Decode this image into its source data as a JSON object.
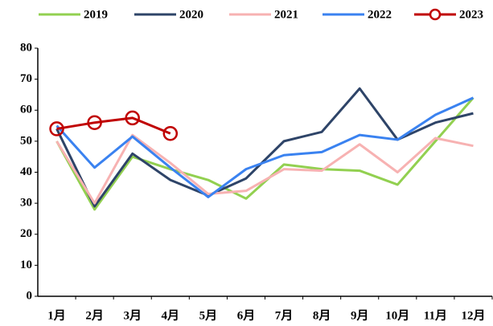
{
  "chart_data": {
    "type": "line",
    "categories": [
      "1月",
      "2月",
      "3月",
      "4月",
      "5月",
      "6月",
      "7月",
      "8月",
      "9月",
      "10月",
      "11月",
      "12月"
    ],
    "series": [
      {
        "name": "2019",
        "color": "#92d050",
        "values": [
          50,
          28,
          45,
          41,
          37.5,
          31.5,
          42.5,
          41,
          40.5,
          36,
          50,
          64
        ]
      },
      {
        "name": "2020",
        "color": "#2e4468",
        "values": [
          54,
          29,
          46,
          37.5,
          32.5,
          38,
          50,
          53,
          67,
          50.5,
          56,
          59
        ]
      },
      {
        "name": "2021",
        "color": "#f7b2b2",
        "values": [
          50,
          30,
          52,
          43,
          33,
          34,
          41,
          40.5,
          49,
          40,
          51,
          48.5
        ]
      },
      {
        "name": "2022",
        "color": "#3a82f0",
        "values": [
          55,
          41.5,
          51.5,
          41.5,
          32,
          41,
          45.5,
          46.5,
          52,
          50.5,
          58.5,
          64
        ]
      },
      {
        "name": "2023",
        "color": "#c00000",
        "markers": true,
        "values": [
          54,
          56,
          57.5,
          52.5,
          null,
          null,
          null,
          null,
          null,
          null,
          null,
          null
        ]
      }
    ],
    "ylim": [
      0,
      80
    ],
    "yticks": [
      0,
      10,
      20,
      30,
      40,
      50,
      60,
      70,
      80
    ],
    "grid": false,
    "legend": "top"
  }
}
